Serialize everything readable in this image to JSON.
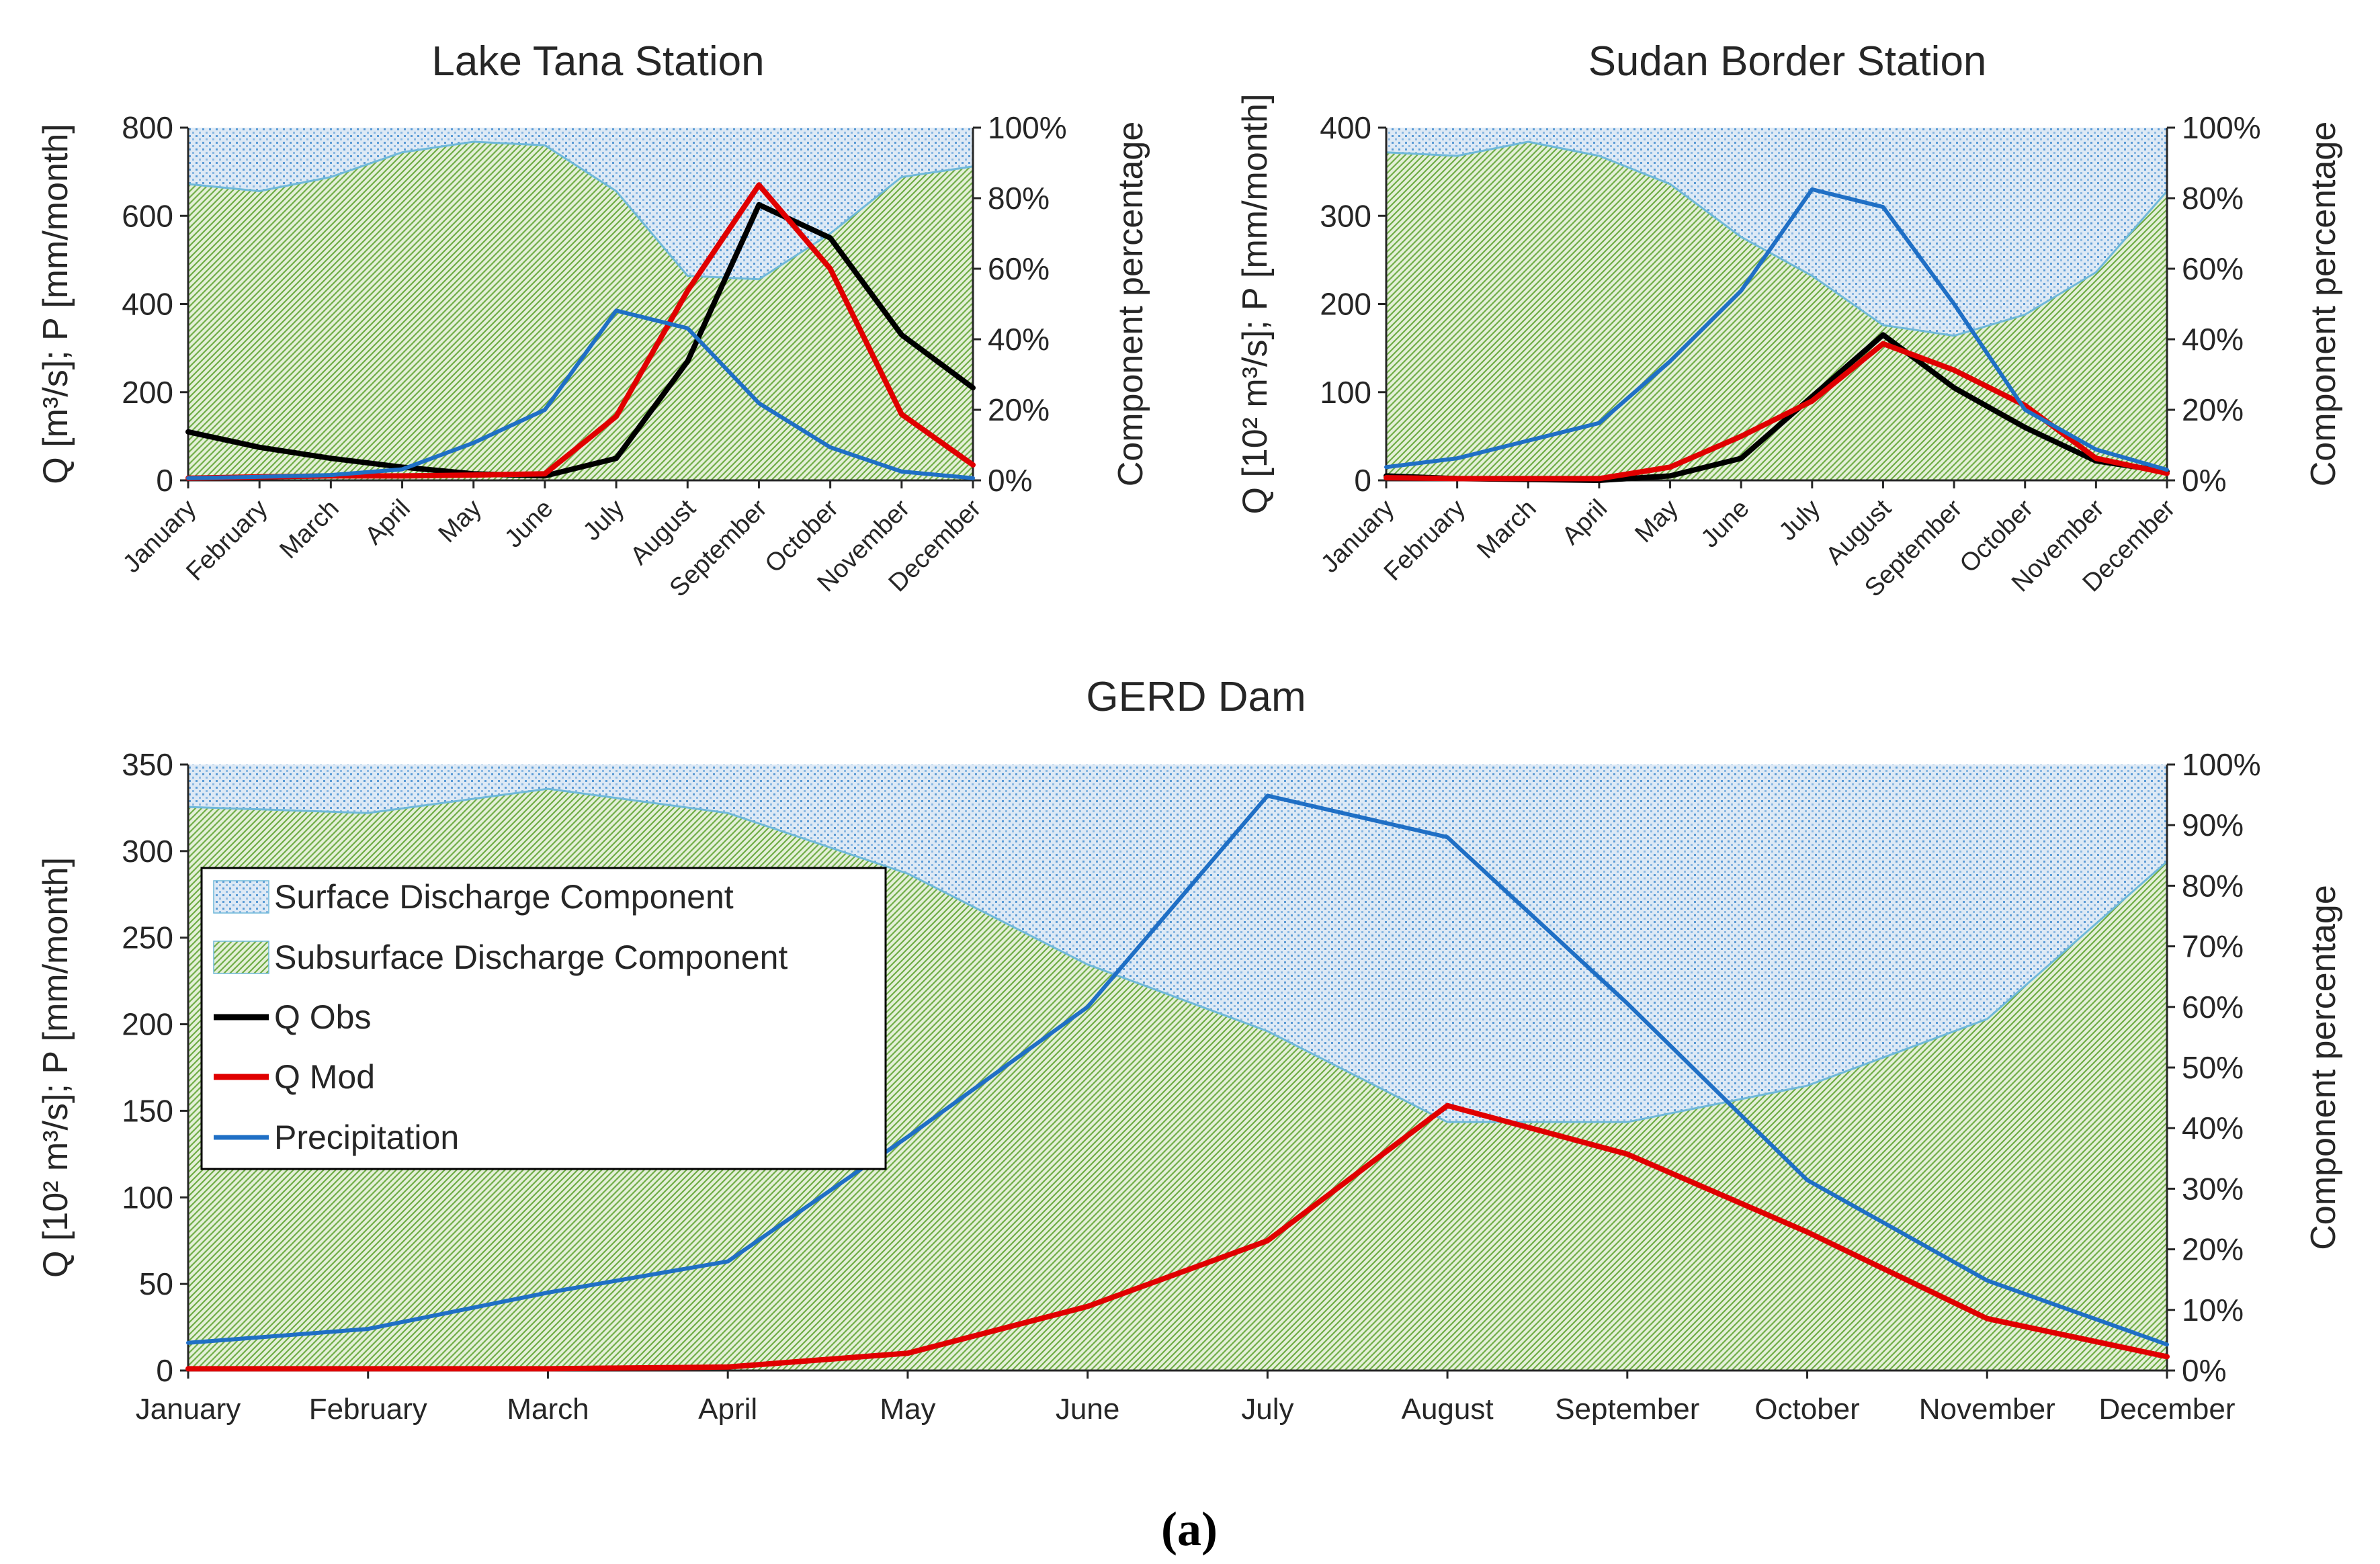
{
  "figure": {
    "caption": "(a)",
    "legend": {
      "surface": "Surface Discharge Component",
      "subsurface": "Subsurface Discharge Component",
      "q_obs": "Q Obs",
      "q_mod": "Q Mod",
      "precip": "Precipitation"
    },
    "colors": {
      "q_obs": "#000000",
      "q_mod": "#e00000",
      "precip": "#1f6fc5",
      "surface_fill": "#dce9f6",
      "surface_dot": "#5b9bd5",
      "subsurface_fill": "#e3f0d6",
      "subsurface_hatch": "#70ad47",
      "area_edge": "#6fb8d9",
      "axis": "#262626"
    }
  },
  "chart_data": [
    {
      "type": "line",
      "title": "Lake Tana Station",
      "ylabel": "Q [m³/s]; P [mm/month]",
      "y2label": "Component percentage",
      "categories": [
        "January",
        "February",
        "March",
        "April",
        "May",
        "June",
        "July",
        "August",
        "September",
        "October",
        "November",
        "December"
      ],
      "ylim": [
        0,
        800
      ],
      "yticks": [
        "0",
        "200",
        "400",
        "600",
        "800"
      ],
      "y2ticks": [
        "0%",
        "20%",
        "40%",
        "60%",
        "80%",
        "100%"
      ],
      "series": [
        {
          "name": "Q Obs",
          "values": [
            110,
            75,
            50,
            30,
            15,
            10,
            50,
            270,
            625,
            550,
            330,
            210
          ]
        },
        {
          "name": "Q Mod",
          "values": [
            5,
            8,
            10,
            10,
            12,
            15,
            145,
            430,
            670,
            480,
            150,
            35
          ]
        },
        {
          "name": "Precipitation",
          "values": [
            5,
            8,
            12,
            25,
            85,
            160,
            385,
            345,
            175,
            75,
            20,
            5
          ]
        }
      ],
      "subsurface_pct": [
        84,
        82,
        86,
        93,
        96,
        95,
        82,
        58,
        57,
        70,
        86,
        89
      ]
    },
    {
      "type": "line",
      "title": "Sudan Border Station",
      "ylabel": "Q [10² m³/s]; P [mm/month]",
      "y2label": "Component percentage",
      "categories": [
        "January",
        "February",
        "March",
        "April",
        "May",
        "June",
        "July",
        "August",
        "September",
        "October",
        "November",
        "December"
      ],
      "ylim": [
        0,
        400
      ],
      "yticks": [
        "0",
        "100",
        "200",
        "300",
        "400"
      ],
      "y2ticks": [
        "0%",
        "20%",
        "40%",
        "60%",
        "80%",
        "100%"
      ],
      "series": [
        {
          "name": "Q Obs",
          "values": [
            5,
            2,
            1,
            0,
            5,
            25,
            95,
            165,
            105,
            60,
            22,
            10
          ]
        },
        {
          "name": "Q Mod",
          "values": [
            3,
            2,
            2,
            2,
            15,
            50,
            90,
            155,
            125,
            85,
            25,
            8
          ]
        },
        {
          "name": "Precipitation",
          "values": [
            15,
            25,
            45,
            65,
            135,
            215,
            330,
            310,
            200,
            80,
            35,
            12
          ]
        }
      ],
      "subsurface_pct": [
        93,
        92,
        96,
        92,
        84,
        69,
        58,
        44,
        41,
        47,
        59,
        82
      ]
    },
    {
      "type": "line",
      "title": "GERD Dam",
      "ylabel": "Q [10² m³/s]; P [mm/month]",
      "y2label": "Component percentage",
      "categories": [
        "January",
        "February",
        "March",
        "April",
        "May",
        "June",
        "July",
        "August",
        "September",
        "October",
        "November",
        "December"
      ],
      "ylim": [
        0,
        350
      ],
      "yticks": [
        "0",
        "50",
        "100",
        "150",
        "200",
        "250",
        "300",
        "350"
      ],
      "y2ticks": [
        "0%",
        "10%",
        "20%",
        "30%",
        "40%",
        "50%",
        "60%",
        "70%",
        "80%",
        "90%",
        "100%"
      ],
      "series": [
        {
          "name": "Q Mod",
          "values": [
            1,
            1,
            1,
            2,
            10,
            37,
            75,
            153,
            125,
            80,
            30,
            8
          ]
        },
        {
          "name": "Precipitation",
          "values": [
            16,
            24,
            45,
            63,
            135,
            210,
            332,
            308,
            212,
            110,
            52,
            15
          ]
        }
      ],
      "subsurface_pct": [
        93,
        92,
        96,
        92,
        82,
        67,
        56,
        41,
        41,
        47,
        58,
        84
      ]
    }
  ]
}
